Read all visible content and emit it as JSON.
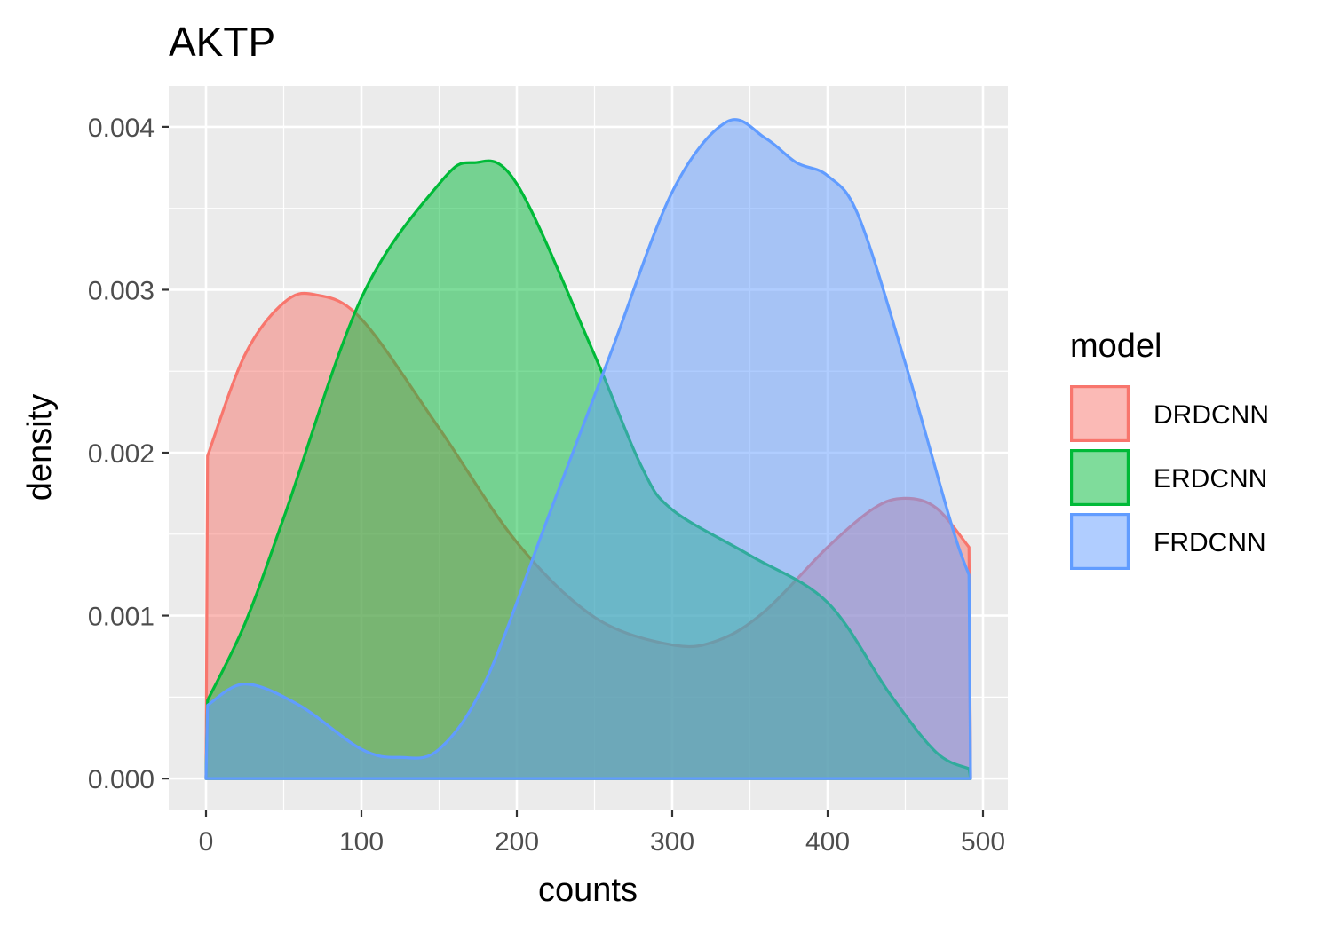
{
  "chart_data": {
    "type": "area",
    "title": "AKTP",
    "xlabel": "counts",
    "ylabel": "density",
    "xlim": [
      -24,
      516
    ],
    "ylim": [
      -0.00019,
      0.00425
    ],
    "x_ticks": [
      0,
      100,
      200,
      300,
      400,
      500
    ],
    "x_tick_labels": [
      "0",
      "100",
      "200",
      "300",
      "400",
      "500"
    ],
    "y_ticks": [
      0,
      0.001,
      0.002,
      0.003,
      0.004
    ],
    "y_tick_labels": [
      "0.000",
      "0.001",
      "0.002",
      "0.003",
      "0.004"
    ],
    "grid": true,
    "legend": {
      "title": "model",
      "position": "right"
    },
    "series": [
      {
        "name": "DRDCNN",
        "color": "#F8766D",
        "x": [
          0,
          1,
          25,
          50,
          70,
          100,
          150,
          200,
          250,
          300,
          330,
          360,
          400,
          430,
          450,
          470,
          491,
          492
        ],
        "y": [
          0,
          0.00198,
          0.0026,
          0.00292,
          0.00297,
          0.00282,
          0.00215,
          0.00145,
          0.00099,
          0.00082,
          0.00085,
          0.00103,
          0.00142,
          0.00166,
          0.00172,
          0.00166,
          0.00142,
          0
        ]
      },
      {
        "name": "ERDCNN",
        "color": "#00BA38",
        "x": [
          0,
          1,
          25,
          50,
          100,
          150,
          172,
          200,
          250,
          280,
          300,
          350,
          400,
          440,
          470,
          491,
          492
        ],
        "y": [
          0,
          0.00048,
          0.00095,
          0.0016,
          0.00295,
          0.00365,
          0.00378,
          0.00365,
          0.0026,
          0.00192,
          0.00165,
          0.00137,
          0.00108,
          0.00052,
          0.00016,
          6e-05,
          0
        ]
      },
      {
        "name": "FRDCNN",
        "color": "#619CFF",
        "x": [
          0,
          1,
          25,
          60,
          100,
          125,
          150,
          180,
          220,
          260,
          300,
          335,
          360,
          380,
          400,
          420,
          450,
          480,
          491,
          492
        ],
        "y": [
          0,
          0.00045,
          0.00058,
          0.00045,
          0.00018,
          0.00013,
          0.00018,
          0.0006,
          0.0016,
          0.0026,
          0.0036,
          0.00403,
          0.00393,
          0.00378,
          0.0037,
          0.00345,
          0.00255,
          0.00155,
          0.00125,
          0
        ]
      }
    ]
  }
}
